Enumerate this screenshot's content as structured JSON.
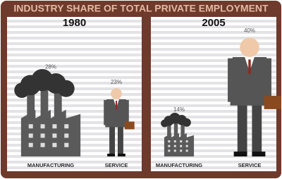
{
  "title": "INDUSTRY SHARE OF TOTAL PRIVATE EMPLOYMENT",
  "chart_data": [
    {
      "type": "bar",
      "title": "1980",
      "categories": [
        "MANUFACTURING",
        "SERVICE"
      ],
      "values": [
        28,
        23
      ],
      "value_labels": [
        "28%",
        "23%"
      ]
    },
    {
      "type": "bar",
      "title": "2005",
      "categories": [
        "MANUFACTURING",
        "SERVICE"
      ],
      "values": [
        14,
        40
      ],
      "value_labels": [
        "14%",
        "40%"
      ]
    }
  ]
}
